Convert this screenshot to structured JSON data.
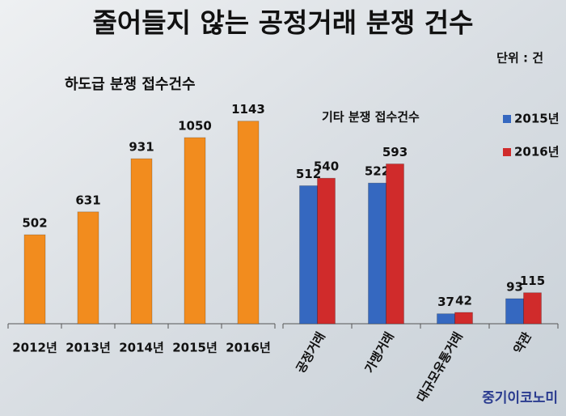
{
  "title": "줄어들지 않는 공정거래 분쟁 건수",
  "unit": "단위 : 건",
  "source": "중기이코노미",
  "chart_data": [
    {
      "type": "bar",
      "title": "하도급 분쟁 접수건수",
      "categories": [
        "2012년",
        "2013년",
        "2014년",
        "2015년",
        "2016년"
      ],
      "values": [
        502,
        631,
        931,
        1050,
        1143
      ],
      "color": "#f28c1e"
    },
    {
      "type": "bar",
      "title": "기타 분쟁 접수건수",
      "categories": [
        "공정거래",
        "가맹거래",
        "대규모유통거래",
        "약관"
      ],
      "series": [
        {
          "name": "2015년",
          "color": "#3568c0",
          "values": [
            512,
            522,
            37,
            93
          ]
        },
        {
          "name": "2016년",
          "color": "#d02b2b",
          "values": [
            540,
            593,
            42,
            115
          ]
        }
      ]
    }
  ]
}
